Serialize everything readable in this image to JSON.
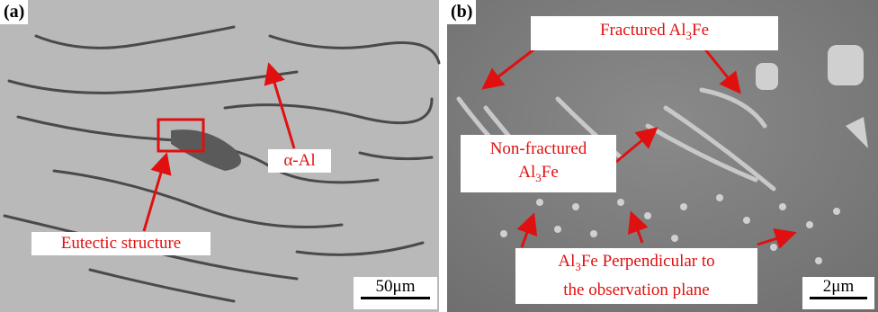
{
  "panels": [
    {
      "label": "(a)",
      "annotations": {
        "alpha": "α-Al",
        "eutectic": "Eutectic structure"
      },
      "scale_bar": "50μm"
    },
    {
      "label": "(b)",
      "annotations": {
        "fractured": [
          "Fractured Al",
          "3",
          "Fe"
        ],
        "non_fractured": [
          "Non-fractured",
          "Al",
          "3",
          "Fe"
        ],
        "perpendicular": [
          "Al",
          "3",
          "Fe Perpendicular to",
          "the observation plane"
        ]
      },
      "scale_bar": "2μm"
    }
  ]
}
